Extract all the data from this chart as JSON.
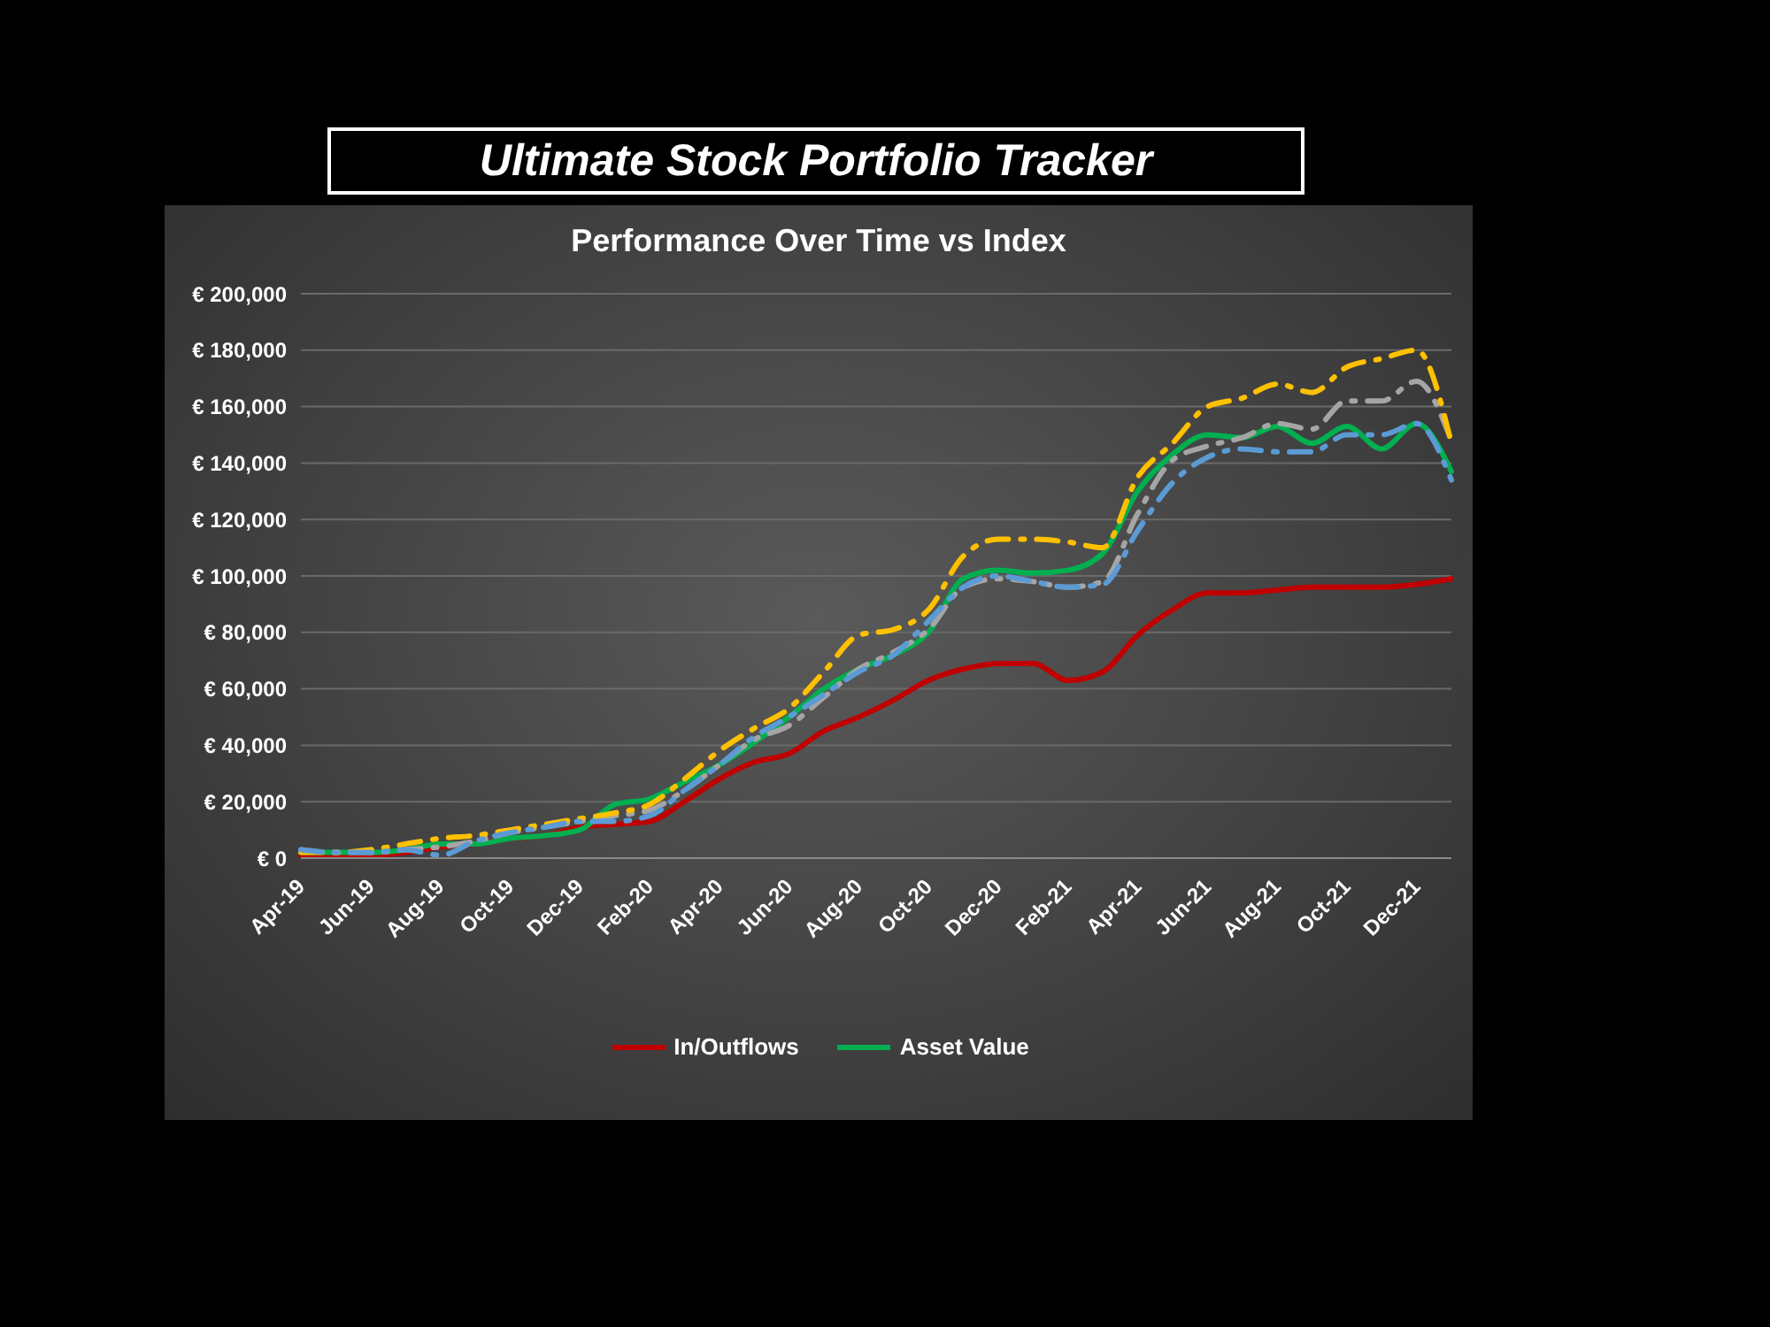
{
  "chart_data": {
    "type": "line",
    "title": "Ultimate Stock Portfolio Tracker",
    "subtitle": "Performance Over Time vs Index",
    "categories": [
      "Apr-19",
      null,
      "Jun-19",
      null,
      "Aug-19",
      null,
      "Oct-19",
      null,
      "Dec-19",
      null,
      "Feb-20",
      null,
      "Apr-20",
      null,
      "Jun-20",
      null,
      "Aug-20",
      null,
      "Oct-20",
      null,
      "Dec-20",
      null,
      "Feb-21",
      null,
      "Apr-21",
      null,
      "Jun-21",
      null,
      "Aug-21",
      null,
      "Oct-21",
      null,
      "Dec-21",
      null
    ],
    "ylim": [
      0,
      200000
    ],
    "yticks": [
      {
        "value": 0,
        "label": "€ 0"
      },
      {
        "value": 20000,
        "label": "€ 20,000"
      },
      {
        "value": 40000,
        "label": "€ 40,000"
      },
      {
        "value": 60000,
        "label": "€ 60,000"
      },
      {
        "value": 80000,
        "label": "€ 80,000"
      },
      {
        "value": 100000,
        "label": "€ 100,000"
      },
      {
        "value": 120000,
        "label": "€ 120,000"
      },
      {
        "value": 140000,
        "label": "€ 140,000"
      },
      {
        "value": 160000,
        "label": "€ 160,000"
      },
      {
        "value": 180000,
        "label": "€ 180,000"
      },
      {
        "value": 200000,
        "label": "€ 200,000"
      }
    ],
    "grid": "y",
    "legend": "bottom",
    "marker": "none",
    "series": [
      {
        "name": "In/Outflows",
        "color": "#c00000",
        "line_style": "solid",
        "values": [
          1000,
          1000,
          1000,
          2000,
          4000,
          5000,
          7000,
          8000,
          11000,
          12000,
          13000,
          20000,
          28000,
          34000,
          37000,
          45000,
          50000,
          56000,
          63000,
          67000,
          69000,
          69000,
          63000,
          66000,
          79000,
          88000,
          94000,
          94000,
          95000,
          96000,
          96000,
          96000,
          97000,
          99000
        ]
      },
      {
        "name": "Asset Value",
        "color": "#00b050",
        "line_style": "solid",
        "values": [
          2000,
          2000,
          2000,
          3000,
          5000,
          5000,
          7000,
          8000,
          10000,
          19000,
          21000,
          27000,
          33000,
          41000,
          50000,
          60000,
          67000,
          72000,
          80000,
          99000,
          102000,
          101000,
          102000,
          108000,
          130000,
          143000,
          150000,
          149000,
          153000,
          147000,
          153000,
          145000,
          154000,
          137000
        ]
      },
      {
        "color": "#a5a5a5",
        "line_style": "dashed",
        "values": [
          3000,
          2000,
          2000,
          3000,
          4000,
          6000,
          9000,
          11000,
          13000,
          15000,
          17000,
          24000,
          33000,
          42000,
          47000,
          57000,
          67000,
          73000,
          81000,
          96000,
          99000,
          98000,
          96000,
          98000,
          122000,
          141000,
          146000,
          149000,
          154000,
          152000,
          162000,
          162000,
          169000,
          148000
        ]
      },
      {
        "color": "#ffc000",
        "line_style": "dashed",
        "values": [
          2000,
          2000,
          3000,
          5000,
          7000,
          8000,
          10000,
          12000,
          14000,
          16000,
          19000,
          28000,
          38000,
          46000,
          53000,
          66000,
          79000,
          81000,
          88000,
          107000,
          113000,
          113000,
          112000,
          110000,
          135000,
          147000,
          160000,
          163000,
          168000,
          165000,
          174000,
          177000,
          180000,
          147000
        ]
      },
      {
        "color": "#5b9bd5",
        "line_style": "dashed",
        "values": [
          3000,
          2000,
          2000,
          3000,
          1000,
          6000,
          9000,
          11000,
          13000,
          13000,
          15000,
          24000,
          33000,
          43000,
          50000,
          58000,
          66000,
          72000,
          84000,
          96000,
          100000,
          98000,
          96000,
          97000,
          116000,
          133000,
          142000,
          145000,
          144000,
          144000,
          150000,
          150000,
          154000,
          134000
        ]
      }
    ]
  }
}
